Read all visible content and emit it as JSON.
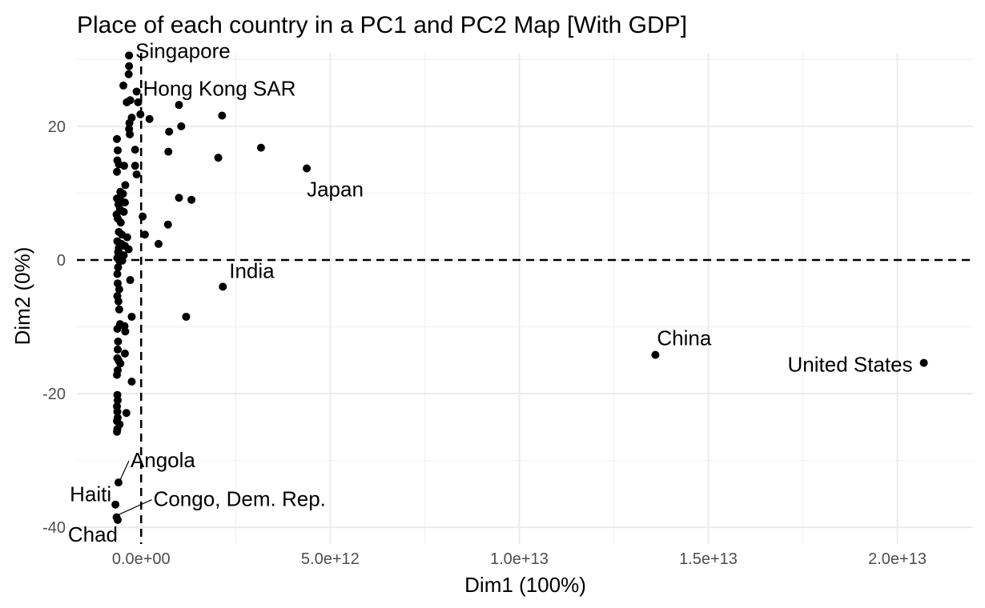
{
  "chart_data": {
    "type": "scatter",
    "title": "Place of each country in a PC1 and PC2 Map [With GDP]",
    "xlabel": "Dim1 (100%)",
    "ylabel": "Dim2 (0%)",
    "xlim": [
      -1700000000000.0,
      22000000000000.0
    ],
    "ylim": [
      -42.5,
      31
    ],
    "x_ticks": [
      0,
      5000000000000.0,
      10000000000000.0,
      15000000000000.0,
      20000000000000.0
    ],
    "x_tick_labels": [
      "0.0e+00",
      "5.0e+12",
      "1.0e+13",
      "1.5e+13",
      "2.0e+13"
    ],
    "y_ticks": [
      20,
      0,
      -20,
      -40
    ],
    "y_tick_labels": [
      "20",
      "0",
      "-20",
      "-40"
    ],
    "reference_lines": {
      "x": 0,
      "y": 0,
      "style": "dashed"
    },
    "grid": true,
    "labeled_points": [
      {
        "label": "Singapore",
        "x": -320000000000.0,
        "y": 30.6
      },
      {
        "label": "Hong Kong SAR",
        "x": -120000000000.0,
        "y": 25.2
      },
      {
        "label": "Japan",
        "x": 4380000000000.0,
        "y": 13.7
      },
      {
        "label": "India",
        "x": 2160000000000.0,
        "y": -4.0
      },
      {
        "label": "China",
        "x": 13600000000000.0,
        "y": -14.2
      },
      {
        "label": "United States",
        "x": 20700000000000.0,
        "y": -15.4
      },
      {
        "label": "Angola",
        "x": -600000000000.0,
        "y": -33.3
      },
      {
        "label": "Haiti",
        "x": -680000000000.0,
        "y": -36.6
      },
      {
        "label": "Congo, Dem. Rep.",
        "x": -650000000000.0,
        "y": -38.5
      },
      {
        "label": "Chad",
        "x": -620000000000.0,
        "y": -38.9
      }
    ],
    "other_points": [
      [
        -320000000000.0,
        29.0
      ],
      [
        -330000000000.0,
        27.8
      ],
      [
        -470000000000.0,
        26.1
      ],
      [
        -380000000000.0,
        23.6
      ],
      [
        -290000000000.0,
        23.9
      ],
      [
        -80000000000.0,
        23.6
      ],
      [
        -20000000000.0,
        21.8
      ],
      [
        220000000000.0,
        21.1
      ],
      [
        -250000000000.0,
        21.3
      ],
      [
        -310000000000.0,
        20.5
      ],
      [
        -320000000000.0,
        19.6
      ],
      [
        -300000000000.0,
        18.8
      ],
      [
        -640000000000.0,
        18.1
      ],
      [
        -160000000000.0,
        16.5
      ],
      [
        -620000000000.0,
        16.4
      ],
      [
        -630000000000.0,
        14.9
      ],
      [
        -590000000000.0,
        14.3
      ],
      [
        -450000000000.0,
        14.1
      ],
      [
        -160000000000.0,
        14.1
      ],
      [
        -640000000000.0,
        13.2
      ],
      [
        -120000000000.0,
        12.8
      ],
      [
        -420000000000.0,
        11.2
      ],
      [
        -550000000000.0,
        10.2
      ],
      [
        -480000000000.0,
        9.9
      ],
      [
        -640000000000.0,
        9.2
      ],
      [
        -530000000000.0,
        8.8
      ],
      [
        -430000000000.0,
        8.6
      ],
      [
        -600000000000.0,
        8.3
      ],
      [
        -560000000000.0,
        7.6
      ],
      [
        -460000000000.0,
        7.2
      ],
      [
        -650000000000.0,
        6.8
      ],
      [
        -620000000000.0,
        6.2
      ],
      [
        -540000000000.0,
        5.6
      ],
      [
        -590000000000.0,
        4.2
      ],
      [
        -510000000000.0,
        3.8
      ],
      [
        -370000000000.0,
        3.4
      ],
      [
        -630000000000.0,
        2.8
      ],
      [
        -520000000000.0,
        2.4
      ],
      [
        -430000000000.0,
        2.1
      ],
      [
        -590000000000.0,
        1.8
      ],
      [
        -330000000000.0,
        1.6
      ],
      [
        -610000000000.0,
        1.2
      ],
      [
        -560000000000.0,
        0.9
      ],
      [
        -460000000000.0,
        0.7
      ],
      [
        -630000000000.0,
        0.3
      ],
      [
        -570000000000.0,
        -0.2
      ],
      [
        -500000000000.0,
        -0.1
      ],
      [
        -610000000000.0,
        -1.1
      ],
      [
        -630000000000.0,
        -2.1
      ],
      [
        -290000000000.0,
        -3.0
      ],
      [
        -620000000000.0,
        -3.5
      ],
      [
        -580000000000.0,
        -4.4
      ],
      [
        -630000000000.0,
        -5.4
      ],
      [
        -600000000000.0,
        -6.2
      ],
      [
        -580000000000.0,
        -7.4
      ],
      [
        -250000000000.0,
        -8.5
      ],
      [
        -560000000000.0,
        -9.6
      ],
      [
        -440000000000.0,
        -9.9
      ],
      [
        -630000000000.0,
        -10.3
      ],
      [
        -420000000000.0,
        -10.7
      ],
      [
        -610000000000.0,
        -12.2
      ],
      [
        -620000000000.0,
        -13.4
      ],
      [
        -430000000000.0,
        -14.0
      ],
      [
        -630000000000.0,
        -14.7
      ],
      [
        -590000000000.0,
        -15.1
      ],
      [
        -550000000000.0,
        -15.5
      ],
      [
        -620000000000.0,
        -16.5
      ],
      [
        -640000000000.0,
        -17.2
      ],
      [
        -250000000000.0,
        -18.2
      ],
      [
        -630000000000.0,
        -20.2
      ],
      [
        -620000000000.0,
        -21.0
      ],
      [
        -640000000000.0,
        -21.9
      ],
      [
        -630000000000.0,
        -22.7
      ],
      [
        -390000000000.0,
        -22.9
      ],
      [
        -620000000000.0,
        -23.6
      ],
      [
        -640000000000.0,
        -24.1
      ],
      [
        -570000000000.0,
        -24.6
      ],
      [
        -630000000000.0,
        -25.3
      ],
      [
        -640000000000.0,
        -25.7
      ],
      [
        40000000000.0,
        6.5
      ],
      [
        100000000000.0,
        3.8
      ],
      [
        710000000000.0,
        5.3
      ],
      [
        460000000000.0,
        2.4
      ],
      [
        1000000000000.0,
        9.3
      ],
      [
        1330000000000.0,
        9.0
      ],
      [
        720000000000.0,
        16.2
      ],
      [
        740000000000.0,
        19.2
      ],
      [
        1000000000000.0,
        23.2
      ],
      [
        1060000000000.0,
        20.0
      ],
      [
        2040000000000.0,
        15.3
      ],
      [
        2140000000000.0,
        21.6
      ],
      [
        3170000000000.0,
        16.8
      ],
      [
        1190000000000.0,
        -8.5
      ]
    ]
  }
}
